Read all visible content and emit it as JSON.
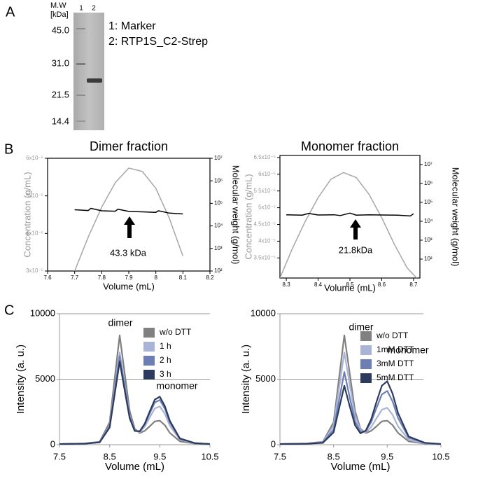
{
  "figure": {
    "panel_labels": [
      "A",
      "B",
      "C"
    ],
    "gel": {
      "mw_header": [
        "M.W",
        "[kDa]"
      ],
      "lanes": [
        "1",
        "2"
      ],
      "markers": [
        "45.0",
        "31.0",
        "21.5",
        "14.4"
      ],
      "legend": [
        "1: Marker",
        "2: RTP1S_C2-Strep"
      ]
    }
  },
  "chart_data": [
    {
      "type": "line",
      "title": "Dimer fraction",
      "xlabel": "Volume (mL)",
      "ylabel": "Concentration (g/mL)",
      "y2label": "Molecular weight (g/mol)",
      "xlim": [
        7.6,
        8.2
      ],
      "xticks": [
        7.6,
        7.7,
        7.8,
        7.9,
        8,
        8.1,
        8.2
      ],
      "ylim": [
        3e-05,
        6e-05
      ],
      "yticks": [
        {
          "value": 3e-05,
          "label": "3x10⁻⁵"
        },
        {
          "value": 4e-05,
          "label": "4x10⁻⁵"
        },
        {
          "value": 5e-05,
          "label": "5x10⁻⁵"
        },
        {
          "value": 6e-05,
          "label": "6x10⁻⁵"
        }
      ],
      "y2lim": [
        100,
        10000000
      ],
      "y2scale": "log",
      "y2ticks": [
        {
          "value": 100,
          "label": "10²"
        },
        {
          "value": 1000,
          "label": "10³"
        },
        {
          "value": 10000,
          "label": "10⁴"
        },
        {
          "value": 100000,
          "label": "10⁵"
        },
        {
          "value": 1000000,
          "label": "10⁶"
        },
        {
          "value": 10000000,
          "label": "10⁷"
        }
      ],
      "series": [
        {
          "color": "#a6a6a6",
          "x": [
            7.7,
            7.75,
            7.8,
            7.85,
            7.9,
            7.95,
            8.0,
            8.05,
            8.1
          ],
          "values": [
            3e-05,
            3.9e-05,
            4.7e-05,
            5.35e-05,
            5.74e-05,
            5.65e-05,
            5.2e-05,
            4.4e-05,
            3.4e-05
          ]
        },
        {
          "color": "#000000",
          "axis": "y2",
          "x": [
            7.7,
            7.75,
            7.76,
            7.8,
            7.85,
            7.86,
            7.9,
            7.95,
            8.0,
            8.01,
            8.05,
            8.1
          ],
          "values": [
            52000,
            48000,
            60000,
            47000,
            45000,
            55000,
            44000,
            42000,
            40000,
            47000,
            37000,
            34000
          ]
        }
      ],
      "annotations": [
        "43.3 kDa"
      ]
    },
    {
      "type": "line",
      "title": "Monomer fraction",
      "xlabel": "Volume (mL)",
      "ylabel": "Concentration (g/mL)",
      "y2label": "Molecular weight (g/mol)",
      "xlim": [
        8.28,
        8.72
      ],
      "xticks": [
        8.3,
        8.4,
        8.5,
        8.6,
        8.7
      ],
      "ylim": [
        2.9e-05,
        6.56e-05
      ],
      "yticks": [
        {
          "value": 3.5e-05,
          "label": "3.5x10⁻⁵"
        },
        {
          "value": 4e-05,
          "label": "4x10⁻⁵"
        },
        {
          "value": 4.5e-05,
          "label": "4.5x10⁻⁵"
        },
        {
          "value": 5e-05,
          "label": "5x10⁻⁵"
        },
        {
          "value": 5.5e-05,
          "label": "5.5x10⁻⁵"
        },
        {
          "value": 6e-05,
          "label": "6x10⁻⁵"
        },
        {
          "value": 6.5e-05,
          "label": "6.5x10⁻⁵"
        }
      ],
      "y2lim": [
        10,
        30000000
      ],
      "y2scale": "log",
      "y2ticks": [
        {
          "value": 100,
          "label": "10²"
        },
        {
          "value": 1000,
          "label": "10³"
        },
        {
          "value": 10000,
          "label": "10⁴"
        },
        {
          "value": 100000,
          "label": "10⁵"
        },
        {
          "value": 1000000,
          "label": "10⁶"
        },
        {
          "value": 10000000,
          "label": "10⁷"
        }
      ],
      "series": [
        {
          "color": "#a6a6a6",
          "x": [
            8.28,
            8.32,
            8.36,
            8.4,
            8.44,
            8.48,
            8.52,
            8.56,
            8.6,
            8.64,
            8.68,
            8.71
          ],
          "values": [
            2.9e-05,
            3.8e-05,
            4.6e-05,
            5.3e-05,
            5.85e-05,
            6.05e-05,
            5.9e-05,
            5.4e-05,
            4.7e-05,
            3.9e-05,
            3.2e-05,
            2.9e-05
          ]
        },
        {
          "color": "#000000",
          "axis": "y2",
          "x": [
            8.3,
            8.35,
            8.37,
            8.4,
            8.45,
            8.47,
            8.5,
            8.52,
            8.56,
            8.6,
            8.65,
            8.69,
            8.7
          ],
          "values": [
            22000,
            21000,
            26000,
            21500,
            22000,
            20000,
            27000,
            21000,
            22000,
            21500,
            21000,
            19000,
            25000
          ]
        }
      ],
      "annotations": [
        "21.8kDa"
      ]
    },
    {
      "type": "line",
      "xlabel": "Volume (mL)",
      "ylabel": "Intensity (a. u.)",
      "xlim": [
        7.5,
        10.5
      ],
      "xticks": [
        7.5,
        8.5,
        9.5,
        10.5
      ],
      "ylim": [
        0,
        10000
      ],
      "yticks": [
        0,
        5000,
        10000
      ],
      "grid": true,
      "legend": "upper right",
      "x": [
        7.5,
        8.0,
        8.3,
        8.5,
        8.6,
        8.7,
        8.8,
        8.9,
        9.0,
        9.1,
        9.2,
        9.3,
        9.4,
        9.5,
        9.6,
        9.7,
        9.9,
        10.2,
        10.5
      ],
      "series": [
        {
          "name": "w/o DTT",
          "color": "#808080",
          "values": [
            50,
            90,
            220,
            1710,
            5030,
            8350,
            5445,
            2574,
            1214,
            886,
            1060,
            1404,
            1780,
            1833,
            1493,
            900,
            254,
            84,
            50
          ]
        },
        {
          "name": "1 h",
          "color": "#aab4d6",
          "values": [
            50,
            85,
            190,
            1450,
            4250,
            7050,
            4600,
            2206,
            1100,
            960,
            1380,
            2080,
            2766,
            2920,
            2360,
            1450,
            386,
            106,
            50
          ]
        },
        {
          "name": "2 h",
          "color": "#6c7fb4",
          "values": [
            50,
            84,
            184,
            1390,
            4070,
            6750,
            4405,
            2126,
            1086,
            1014,
            1540,
            2396,
            3220,
            3417,
            2757,
            1700,
            446,
            116,
            50
          ]
        },
        {
          "name": "3 h",
          "color": "#2c3a5e",
          "values": [
            50,
            82,
            176,
            1310,
            3830,
            6350,
            4145,
            2011,
            1047,
            1024,
            1608,
            2547,
            3442,
            3663,
            2953,
            1825,
            476,
            121,
            50
          ]
        }
      ],
      "annotations": [
        "dimer",
        "monomer"
      ]
    },
    {
      "type": "line",
      "xlabel": "Volume (mL)",
      "ylabel": "Intensity (a. u.)",
      "xlim": [
        7.5,
        10.5
      ],
      "xticks": [
        7.5,
        8.5,
        9.5,
        10.5
      ],
      "ylim": [
        0,
        10000
      ],
      "yticks": [
        0,
        5000,
        10000
      ],
      "grid": true,
      "legend": "upper right",
      "x": [
        7.5,
        8.0,
        8.3,
        8.5,
        8.6,
        8.7,
        8.8,
        8.9,
        9.0,
        9.1,
        9.2,
        9.3,
        9.4,
        9.5,
        9.6,
        9.7,
        9.9,
        10.2,
        10.5
      ],
      "series": [
        {
          "name": "w/o DTT",
          "color": "#808080",
          "values": [
            50,
            90,
            220,
            1710,
            5030,
            8350,
            5445,
            2574,
            1214,
            886,
            1060,
            1404,
            1780,
            1833,
            1493,
            900,
            254,
            84,
            50
          ]
        },
        {
          "name": "1mM DTT",
          "color": "#aab4d6",
          "values": [
            50,
            85,
            190,
            1450,
            4250,
            7050,
            4600,
            2206,
            1100,
            945,
            1345,
            2015,
            2674,
            2820,
            2280,
            1400,
            374,
            104,
            50
          ]
        },
        {
          "name": "3mM DTT",
          "color": "#6c7fb4",
          "values": [
            50,
            78,
            160,
            1150,
            3350,
            5550,
            3625,
            1780,
            965,
            1035,
            1725,
            2815,
            3840,
            4105,
            3305,
            2050,
            530,
            130,
            50
          ]
        },
        {
          "name": "5mM DTT",
          "color": "#2c3a5e",
          "values": [
            50,
            72,
            140,
            940,
            2720,
            4500,
            2943,
            1480,
            867,
            1075,
            1936,
            3272,
            4509,
            4845,
            3895,
            2425,
            620,
            145,
            50
          ]
        }
      ],
      "annotations": [
        "dimer",
        "monomer"
      ]
    }
  ]
}
